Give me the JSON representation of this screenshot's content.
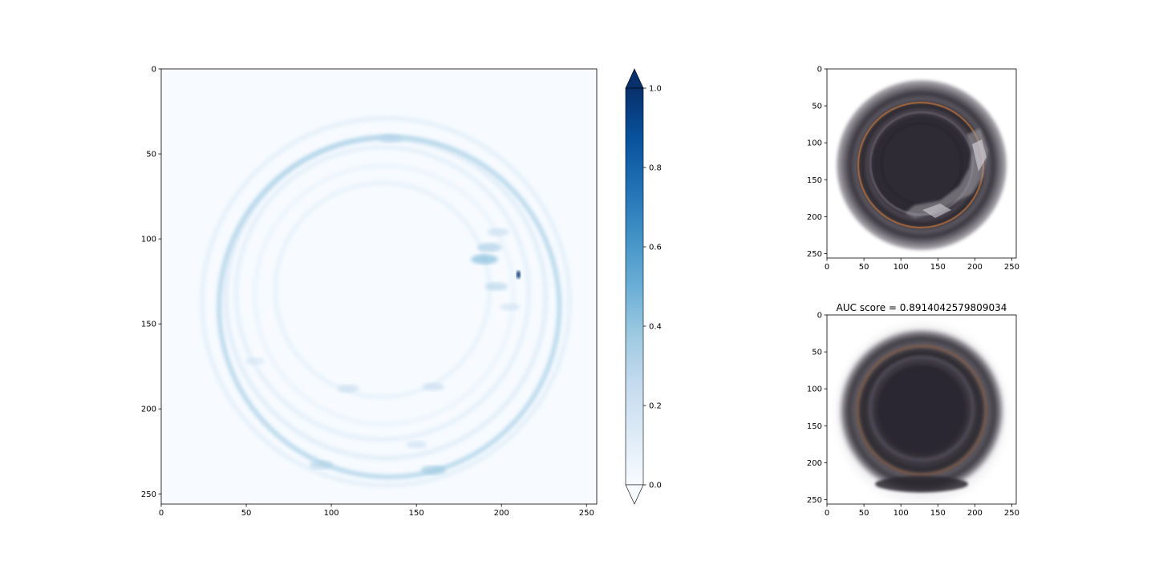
{
  "chart_data": [
    {
      "type": "heatmap",
      "title": "",
      "xlabel": "",
      "ylabel": "",
      "xlim": [
        0,
        256
      ],
      "ylim": [
        256,
        0
      ],
      "xticks": [
        0,
        50,
        100,
        150,
        200,
        250
      ],
      "yticks": [
        0,
        50,
        100,
        150,
        200,
        250
      ],
      "colormap": "Blues",
      "grid": false,
      "rings": [
        {
          "cx": 132,
          "cy": 135,
          "r": 94,
          "intensity": 0.06
        },
        {
          "cx": 134,
          "cy": 140,
          "r": 100,
          "intensity": 0.14
        },
        {
          "cx": 130,
          "cy": 132,
          "r": 86,
          "intensity": 0.05
        },
        {
          "cx": 130,
          "cy": 130,
          "r": 63,
          "intensity": 0.04
        },
        {
          "cx": 131,
          "cy": 133,
          "r": 76,
          "intensity": 0.03
        },
        {
          "cx": 132,
          "cy": 137,
          "r": 108,
          "intensity": 0.05
        }
      ],
      "spots": [
        {
          "x": 210,
          "y": 121,
          "v": 0.95
        },
        {
          "x": 190,
          "y": 112,
          "v": 0.45
        },
        {
          "x": 193,
          "y": 105,
          "v": 0.35
        },
        {
          "x": 197,
          "y": 128,
          "v": 0.3
        },
        {
          "x": 198,
          "y": 96,
          "v": 0.25
        },
        {
          "x": 135,
          "y": 41,
          "v": 0.3
        },
        {
          "x": 160,
          "y": 236,
          "v": 0.38
        },
        {
          "x": 94,
          "y": 233,
          "v": 0.32
        },
        {
          "x": 110,
          "y": 188,
          "v": 0.25
        },
        {
          "x": 160,
          "y": 187,
          "v": 0.25
        },
        {
          "x": 150,
          "y": 221,
          "v": 0.22
        },
        {
          "x": 55,
          "y": 172,
          "v": 0.18
        },
        {
          "x": 205,
          "y": 140,
          "v": 0.2
        }
      ]
    },
    {
      "type": "colorbar",
      "colormap": "Blues",
      "range": [
        0.0,
        1.0
      ],
      "ticks": [
        "0.0",
        "0.2",
        "0.4",
        "0.6",
        "0.8",
        "1.0"
      ],
      "extend": "both"
    },
    {
      "type": "image",
      "title": "",
      "xlim": [
        0,
        256
      ],
      "ylim": [
        256,
        0
      ],
      "xticks": [
        0,
        50,
        100,
        150,
        200,
        250
      ],
      "yticks": [
        0,
        50,
        100,
        150,
        200,
        250
      ],
      "content": "bottle-top-defect-icon"
    },
    {
      "type": "image",
      "title": "AUC score = 0.8914042579809034",
      "xlim": [
        0,
        256
      ],
      "ylim": [
        256,
        0
      ],
      "xticks": [
        0,
        50,
        100,
        150,
        200,
        250
      ],
      "yticks": [
        0,
        50,
        100,
        150,
        200,
        250
      ],
      "content": "bottle-top-reconstruction-icon"
    }
  ],
  "colors": {
    "heat_low": "#f7fbff",
    "heat_high": "#08306b",
    "bottle_dark": "#2e2a33",
    "bottle_rim": "#6e6a72",
    "copper": "#b06a3a"
  }
}
